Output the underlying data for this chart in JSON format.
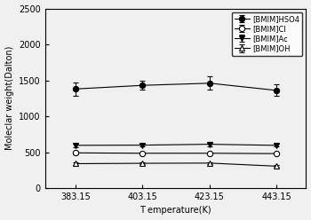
{
  "x": [
    383.15,
    403.15,
    423.15,
    443.15
  ],
  "series": [
    {
      "label": "[BMIM]HSO4",
      "y": [
        1380,
        1430,
        1460,
        1360
      ],
      "yerr": [
        90,
        65,
        90,
        80
      ],
      "marker": "o",
      "fillstyle": "full",
      "color": "black",
      "markersize": 4.5
    },
    {
      "label": "[BMIM]Cl",
      "y": [
        490,
        485,
        485,
        480
      ],
      "yerr": [
        18,
        15,
        15,
        15
      ],
      "marker": "o",
      "fillstyle": "none",
      "color": "black",
      "markersize": 4.5
    },
    {
      "label": "[BMIM]Ac",
      "y": [
        595,
        598,
        610,
        595
      ],
      "yerr": [
        22,
        18,
        28,
        18
      ],
      "marker": "v",
      "fillstyle": "full",
      "color": "black",
      "markersize": 4.5
    },
    {
      "label": "[BMIM]OH",
      "y": [
        340,
        345,
        348,
        305
      ],
      "yerr": [
        14,
        14,
        14,
        14
      ],
      "marker": "^",
      "fillstyle": "none",
      "color": "black",
      "markersize": 4.5
    }
  ],
  "xlabel": "T emperature(K)",
  "ylabel": "Moleclar weight(Dalton)",
  "ylim": [
    0,
    2500
  ],
  "xlim": [
    374,
    452
  ],
  "xticks": [
    383.15,
    403.15,
    423.15,
    443.15
  ],
  "yticks": [
    0,
    500,
    1000,
    1500,
    2000,
    2500
  ],
  "legend_loc": "upper right",
  "fontsize": 7,
  "background_color": "#f0f0f0"
}
